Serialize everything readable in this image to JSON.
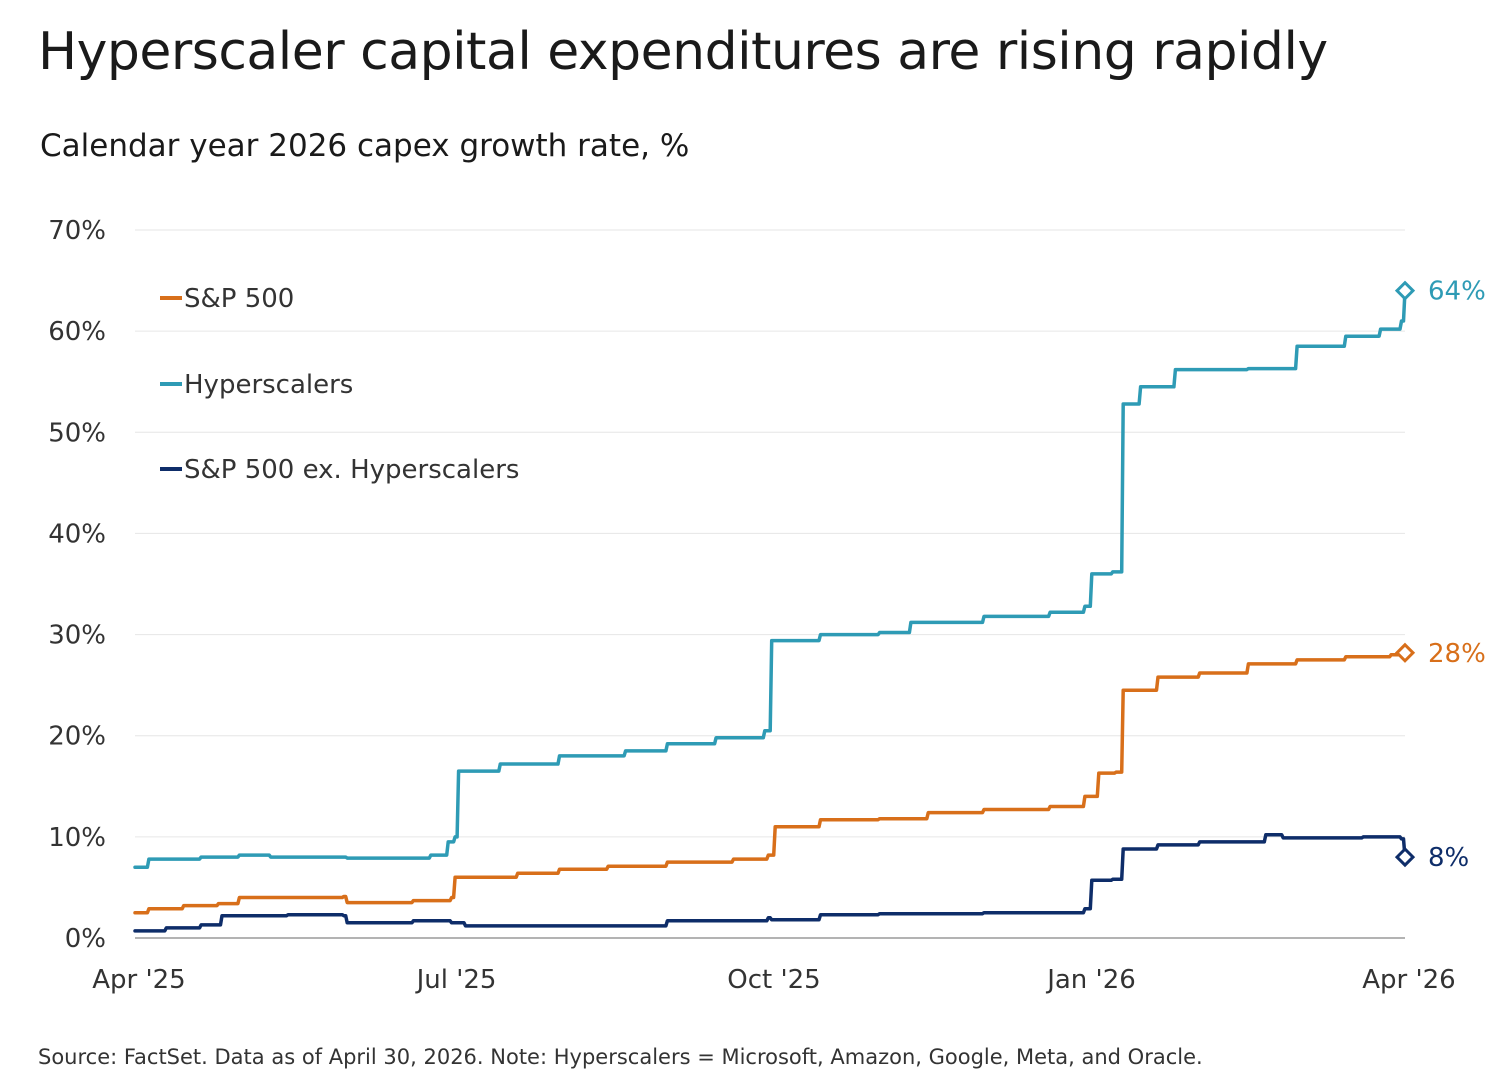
{
  "title": "Hyperscaler capital expenditures are rising rapidly",
  "subtitle": "Calendar year 2026 capex growth rate, %",
  "source": "Source: FactSet. Data as of April 30, 2026. Note: Hyperscalers = Microsoft, Amazon, Google, Meta, and Oracle.",
  "chart_data": {
    "type": "line",
    "title": "Hyperscaler capital expenditures are rising rapidly",
    "subtitle": "Calendar year 2026 capex growth rate, %",
    "x_ticks": [
      "Apr '25",
      "Jul '25",
      "Oct '25",
      "Jan '26",
      "Apr '26"
    ],
    "y_ticks": [
      "0%",
      "10%",
      "20%",
      "30%",
      "40%",
      "50%",
      "60%",
      "70%"
    ],
    "xlim": [
      "2025-04",
      "2026-04"
    ],
    "ylim": [
      0,
      70
    ],
    "grid": "horizontal",
    "legend": "top-left",
    "series": [
      {
        "name": "S&P 500",
        "color": "#D86F1A",
        "end_label": "28%",
        "points": [
          [
            "2025-04-01",
            2.5
          ],
          [
            "2025-04-05",
            2.9
          ],
          [
            "2025-04-15",
            3.2
          ],
          [
            "2025-04-25",
            3.4
          ],
          [
            "2025-05-01",
            4.0
          ],
          [
            "2025-05-15",
            4.0
          ],
          [
            "2025-05-31",
            4.1
          ],
          [
            "2025-06-01",
            3.5
          ],
          [
            "2025-06-20",
            3.7
          ],
          [
            "2025-07-01",
            4.0
          ],
          [
            "2025-07-02",
            6.0
          ],
          [
            "2025-07-20",
            6.4
          ],
          [
            "2025-08-01",
            6.8
          ],
          [
            "2025-08-15",
            7.1
          ],
          [
            "2025-09-01",
            7.5
          ],
          [
            "2025-09-20",
            7.8
          ],
          [
            "2025-09-30",
            8.2
          ],
          [
            "2025-10-02",
            11.0
          ],
          [
            "2025-10-15",
            11.7
          ],
          [
            "2025-11-01",
            11.8
          ],
          [
            "2025-11-15",
            12.4
          ],
          [
            "2025-12-01",
            12.7
          ],
          [
            "2025-12-20",
            13.0
          ],
          [
            "2025-12-30",
            14.0
          ],
          [
            "2026-01-03",
            16.3
          ],
          [
            "2026-01-08",
            16.4
          ],
          [
            "2026-01-10",
            24.5
          ],
          [
            "2026-01-20",
            25.8
          ],
          [
            "2026-02-01",
            26.2
          ],
          [
            "2026-02-15",
            27.1
          ],
          [
            "2026-03-01",
            27.5
          ],
          [
            "2026-03-15",
            27.8
          ],
          [
            "2026-03-28",
            28.0
          ],
          [
            "2026-04-01",
            28.2
          ]
        ]
      },
      {
        "name": "Hyperscalers",
        "color": "#2E9BB5",
        "end_label": "64%",
        "points": [
          [
            "2025-04-01",
            7.0
          ],
          [
            "2025-04-05",
            7.8
          ],
          [
            "2025-04-20",
            8.0
          ],
          [
            "2025-05-01",
            8.2
          ],
          [
            "2025-05-10",
            8.0
          ],
          [
            "2025-06-01",
            7.9
          ],
          [
            "2025-06-25",
            8.2
          ],
          [
            "2025-06-30",
            9.5
          ],
          [
            "2025-07-02",
            10.0
          ],
          [
            "2025-07-03",
            16.5
          ],
          [
            "2025-07-15",
            17.2
          ],
          [
            "2025-08-01",
            18.0
          ],
          [
            "2025-08-20",
            18.5
          ],
          [
            "2025-09-01",
            19.2
          ],
          [
            "2025-09-15",
            19.8
          ],
          [
            "2025-09-29",
            20.5
          ],
          [
            "2025-10-01",
            29.4
          ],
          [
            "2025-10-15",
            30.0
          ],
          [
            "2025-11-01",
            30.2
          ],
          [
            "2025-11-10",
            31.2
          ],
          [
            "2025-12-01",
            31.8
          ],
          [
            "2025-12-20",
            32.2
          ],
          [
            "2025-12-30",
            32.8
          ],
          [
            "2026-01-01",
            36.0
          ],
          [
            "2026-01-07",
            36.2
          ],
          [
            "2026-01-10",
            52.8
          ],
          [
            "2026-01-15",
            54.5
          ],
          [
            "2026-01-25",
            56.2
          ],
          [
            "2026-02-15",
            56.3
          ],
          [
            "2026-03-01",
            58.5
          ],
          [
            "2026-03-15",
            59.5
          ],
          [
            "2026-03-25",
            60.2
          ],
          [
            "2026-03-31",
            61.0
          ],
          [
            "2026-04-01",
            64.0
          ]
        ]
      },
      {
        "name": "S&P 500 ex. Hyperscalers",
        "color": "#0E2D69",
        "end_label": "8%",
        "points": [
          [
            "2025-04-01",
            0.7
          ],
          [
            "2025-04-10",
            1.0
          ],
          [
            "2025-04-20",
            1.3
          ],
          [
            "2025-04-26",
            2.2
          ],
          [
            "2025-05-15",
            2.3
          ],
          [
            "2025-05-31",
            2.2
          ],
          [
            "2025-06-01",
            1.5
          ],
          [
            "2025-06-20",
            1.7
          ],
          [
            "2025-07-01",
            1.5
          ],
          [
            "2025-07-05",
            1.2
          ],
          [
            "2025-08-01",
            1.2
          ],
          [
            "2025-09-01",
            1.7
          ],
          [
            "2025-09-30",
            2.0
          ],
          [
            "2025-10-01",
            1.8
          ],
          [
            "2025-10-15",
            2.3
          ],
          [
            "2025-11-01",
            2.4
          ],
          [
            "2025-12-01",
            2.5
          ],
          [
            "2025-12-30",
            2.9
          ],
          [
            "2026-01-01",
            5.7
          ],
          [
            "2026-01-07",
            5.8
          ],
          [
            "2026-01-10",
            8.8
          ],
          [
            "2026-01-20",
            9.2
          ],
          [
            "2026-02-01",
            9.5
          ],
          [
            "2026-02-20",
            10.2
          ],
          [
            "2026-02-25",
            9.9
          ],
          [
            "2026-03-20",
            10.0
          ],
          [
            "2026-03-31",
            9.8
          ],
          [
            "2026-04-01",
            8.0
          ]
        ]
      }
    ]
  }
}
